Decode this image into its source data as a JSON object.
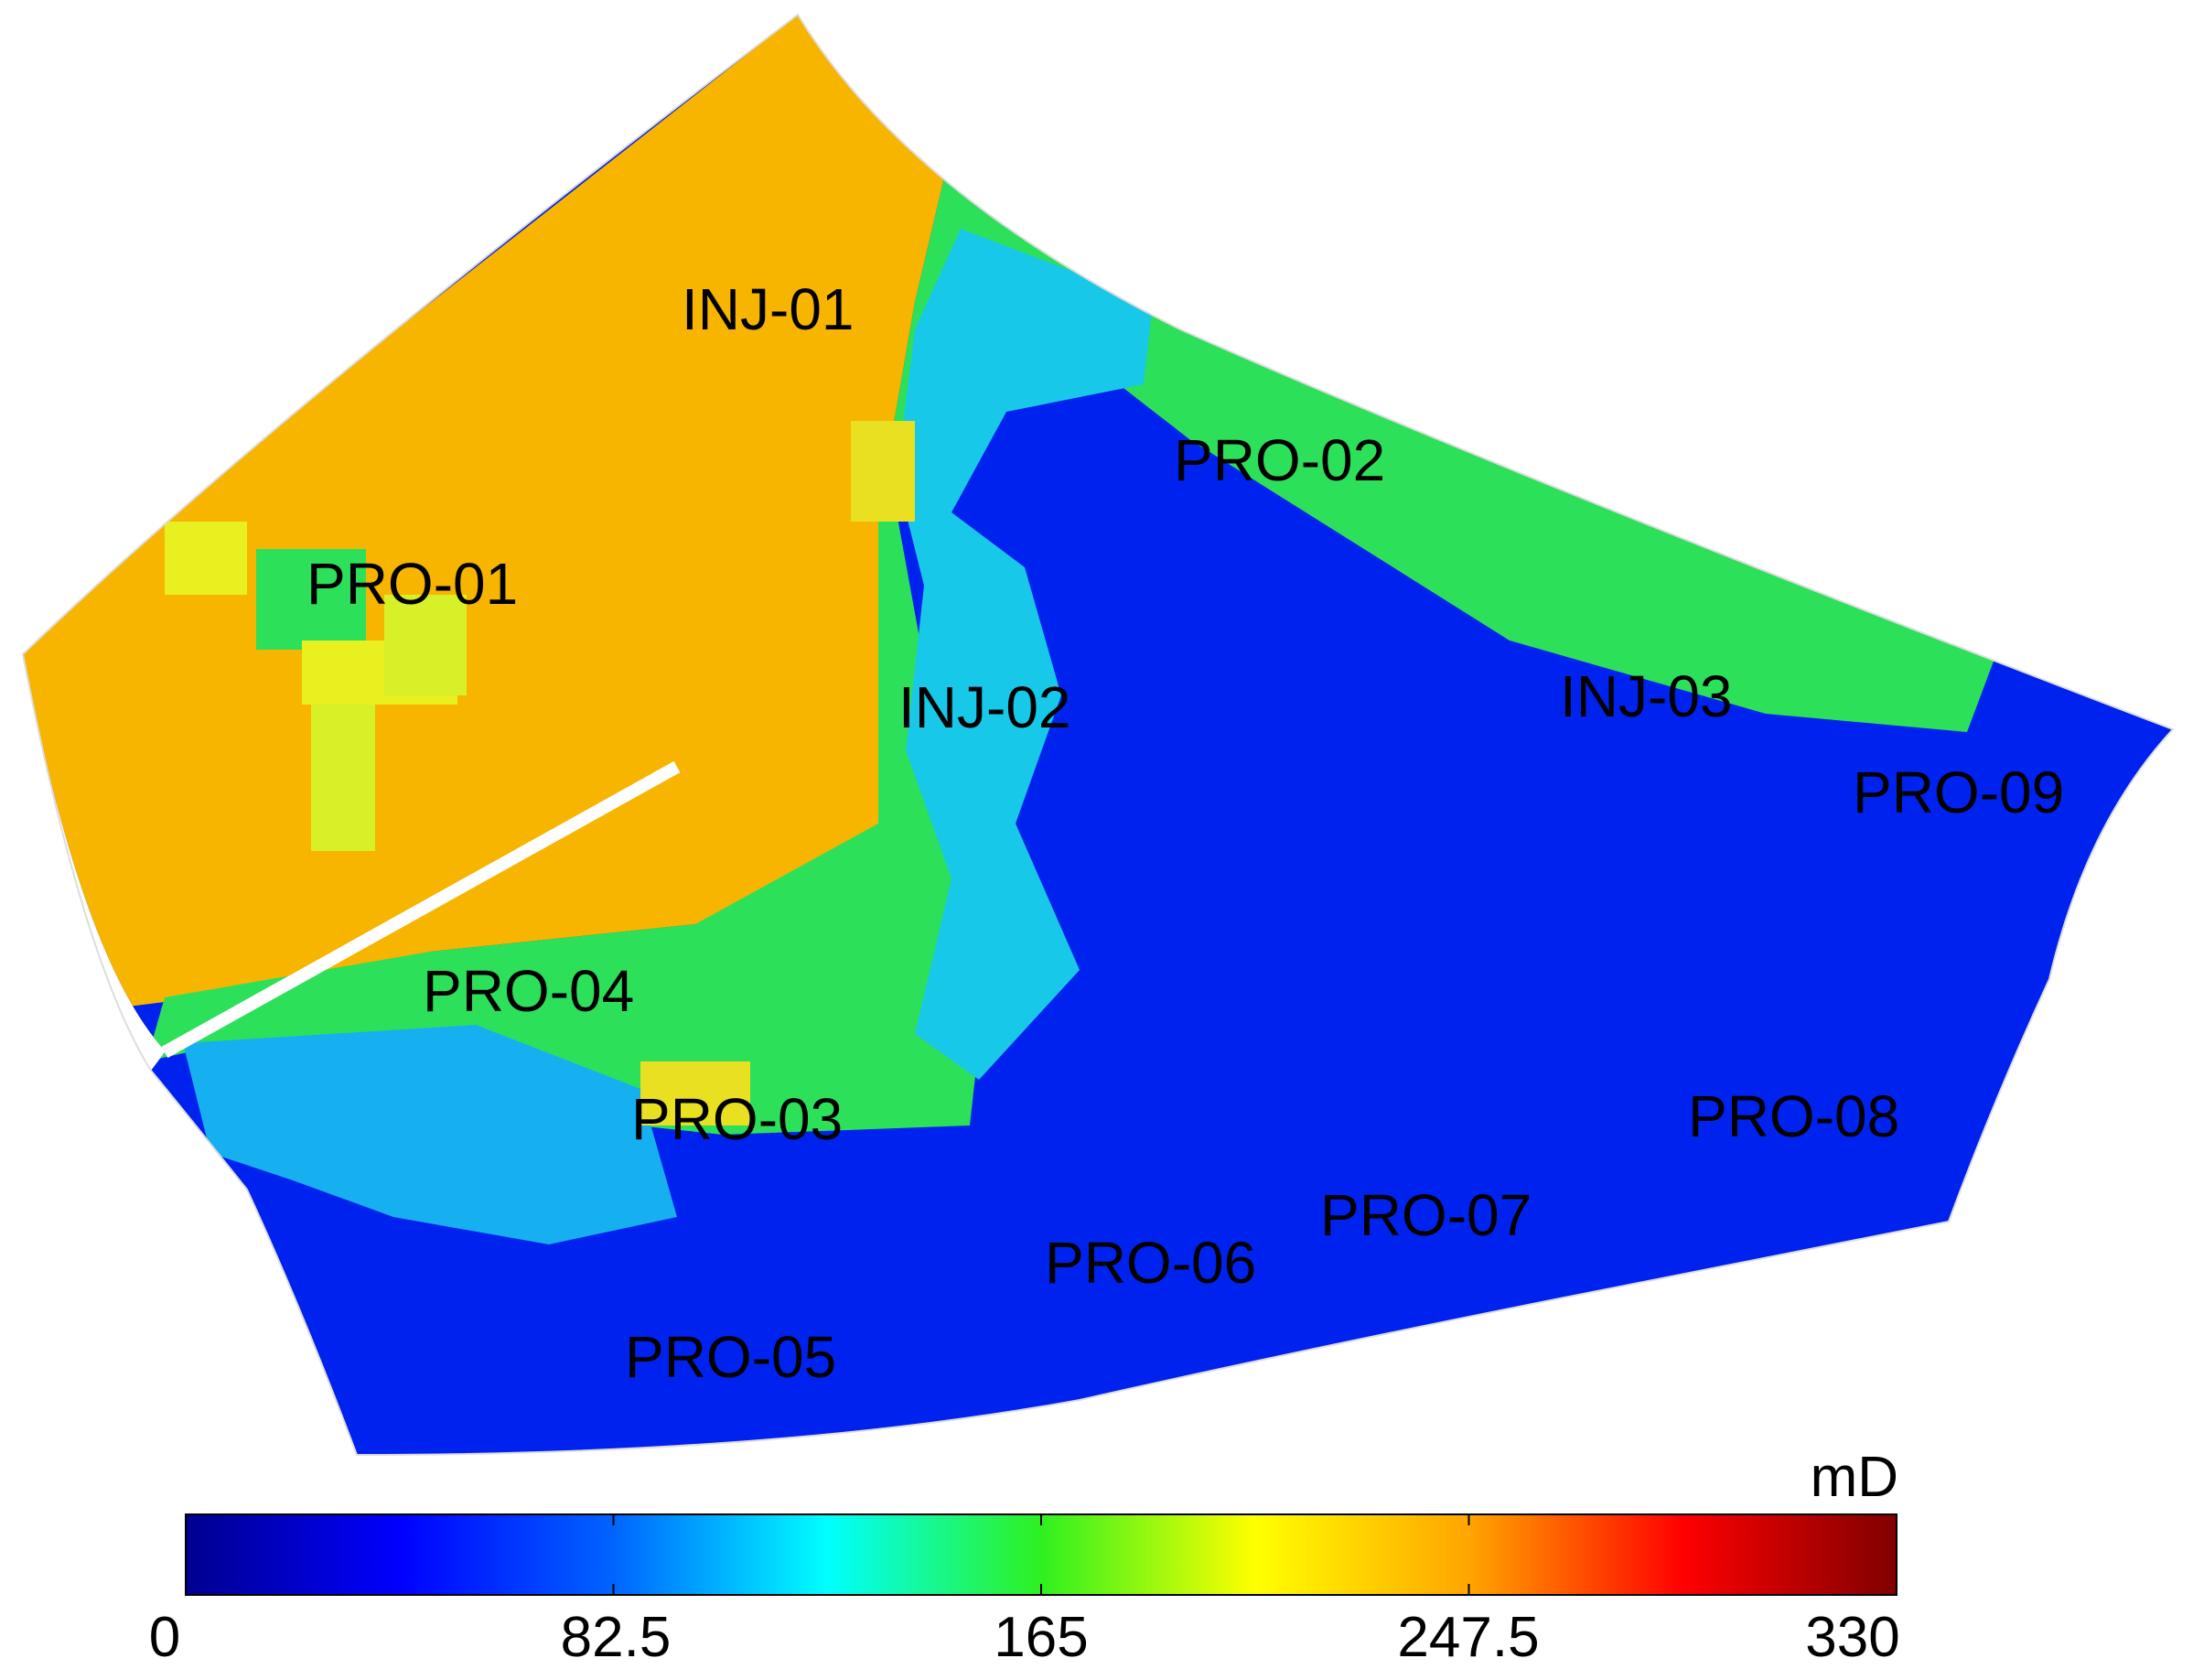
{
  "map": {
    "wells": [
      {
        "name": "INJ-01"
      },
      {
        "name": "PRO-01"
      },
      {
        "name": "PRO-02"
      },
      {
        "name": "INJ-02"
      },
      {
        "name": "INJ-03"
      },
      {
        "name": "PRO-09"
      },
      {
        "name": "PRO-04"
      },
      {
        "name": "PRO-03"
      },
      {
        "name": "PRO-08"
      },
      {
        "name": "PRO-07"
      },
      {
        "name": "PRO-06"
      },
      {
        "name": "PRO-05"
      }
    ]
  },
  "colorbar": {
    "unit": "mD",
    "min": 0,
    "max": 330,
    "ticks": [
      "0",
      "82.5",
      "165",
      "247.5",
      "330"
    ],
    "colormap": "jet"
  }
}
